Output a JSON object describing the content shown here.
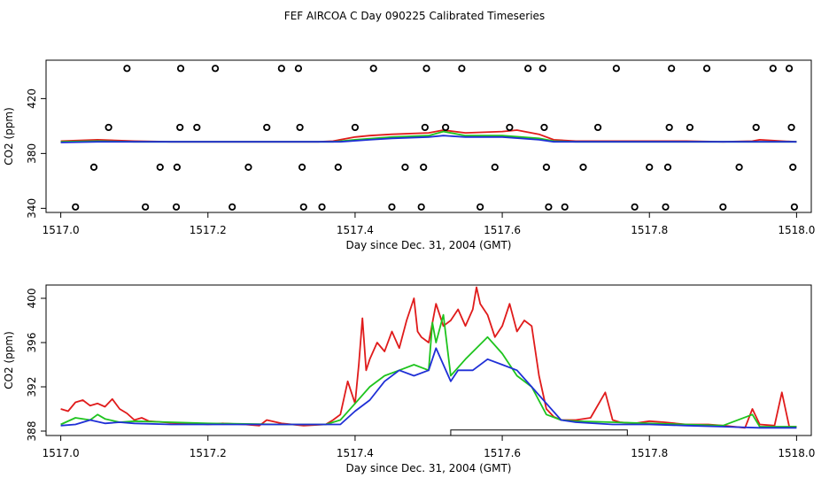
{
  "title": "FEF AIRCOA C  Day 090225  Calibrated Timeseries",
  "colors": {
    "red": "#e01b1b",
    "green": "#1ec41e",
    "blue": "#1f2fd6",
    "frame": "#000000"
  },
  "chart_data": [
    {
      "type": "line",
      "xlabel": "Day since Dec. 31, 2004 (GMT)",
      "ylabel": "CO2 (ppm)",
      "xlim": [
        1516.98,
        1518.02
      ],
      "ylim": [
        337,
        448
      ],
      "xticks": [
        "1517.0",
        "1517.2",
        "1517.4",
        "1517.6",
        "1517.8",
        "1518.0"
      ],
      "xtick_values": [
        1517.0,
        1517.2,
        1517.4,
        1517.6,
        1517.8,
        1518.0
      ],
      "yticks": [
        "340",
        "380",
        "420"
      ],
      "ytick_values": [
        340,
        380,
        420
      ],
      "series": [
        {
          "color": "red",
          "x": [
            1517.0,
            1517.05,
            1517.1,
            1517.15,
            1517.2,
            1517.25,
            1517.3,
            1517.35,
            1517.37,
            1517.4,
            1517.42,
            1517.45,
            1517.5,
            1517.52,
            1517.55,
            1517.6,
            1517.62,
            1517.65,
            1517.67,
            1517.7,
            1517.75,
            1517.8,
            1517.85,
            1517.9,
            1517.94,
            1517.95,
            1517.98,
            1518.0
          ],
          "y": [
            389,
            390,
            389,
            388.5,
            388.5,
            388.5,
            388.5,
            388.5,
            389,
            392,
            393,
            394,
            395,
            397,
            395,
            396,
            397,
            394,
            390,
            389,
            389,
            389,
            389,
            388.5,
            389,
            390,
            389,
            388.5
          ]
        },
        {
          "color": "green",
          "x": [
            1517.0,
            1517.05,
            1517.1,
            1517.2,
            1517.3,
            1517.37,
            1517.4,
            1517.45,
            1517.5,
            1517.52,
            1517.55,
            1517.6,
            1517.65,
            1517.67,
            1517.7,
            1517.8,
            1517.9,
            1518.0
          ],
          "y": [
            388.5,
            389,
            388.5,
            388.5,
            388.5,
            388.5,
            390,
            392,
            393,
            396,
            393,
            393,
            391,
            389,
            388.5,
            388.5,
            388.5,
            388.5
          ]
        },
        {
          "color": "blue",
          "x": [
            1517.0,
            1517.05,
            1517.1,
            1517.2,
            1517.3,
            1517.38,
            1517.42,
            1517.45,
            1517.5,
            1517.52,
            1517.55,
            1517.6,
            1517.65,
            1517.67,
            1517.7,
            1517.8,
            1517.9,
            1518.0
          ],
          "y": [
            388,
            388.5,
            388.5,
            388.5,
            388.5,
            388.5,
            390,
            391,
            392,
            393,
            392,
            392,
            390,
            388.5,
            388.5,
            388.5,
            388.5,
            388.5
          ]
        }
      ],
      "markers": {
        "shape": "circle",
        "x": [
          1517.02,
          1517.045,
          1517.065,
          1517.09,
          1517.115,
          1517.135,
          1517.157,
          1517.158,
          1517.162,
          1517.163,
          1517.185,
          1517.21,
          1517.233,
          1517.255,
          1517.28,
          1517.3,
          1517.323,
          1517.325,
          1517.328,
          1517.33,
          1517.355,
          1517.377,
          1517.4,
          1517.425,
          1517.45,
          1517.468,
          1517.49,
          1517.493,
          1517.495,
          1517.497,
          1517.523,
          1517.545,
          1517.57,
          1517.59,
          1517.61,
          1517.635,
          1517.655,
          1517.657,
          1517.66,
          1517.663,
          1517.685,
          1517.71,
          1517.73,
          1517.755,
          1517.78,
          1517.8,
          1517.822,
          1517.825,
          1517.827,
          1517.83,
          1517.855,
          1517.878,
          1517.9,
          1517.922,
          1517.945,
          1517.968,
          1517.99,
          1517.993,
          1517.995,
          1517.997
        ],
        "y": [
          341,
          370,
          399,
          442,
          341,
          370,
          341,
          370,
          399,
          442,
          399,
          442,
          341,
          370,
          399,
          442,
          442,
          399,
          370,
          341,
          341,
          370,
          399,
          442,
          341,
          370,
          341,
          370,
          399,
          442,
          399,
          442,
          341,
          370,
          399,
          442,
          442,
          399,
          370,
          341,
          341,
          370,
          399,
          442,
          341,
          370,
          341,
          370,
          399,
          442,
          399,
          442,
          341,
          370,
          399,
          442,
          442,
          399,
          370,
          341
        ]
      }
    },
    {
      "type": "line",
      "xlabel": "Day since Dec. 31, 2004 (GMT)",
      "ylabel": "CO2 (ppm)",
      "xlim": [
        1516.98,
        1518.02
      ],
      "ylim": [
        387.6,
        401.2
      ],
      "xticks": [
        "1517.0",
        "1517.2",
        "1517.4",
        "1517.6",
        "1517.8",
        "1518.0"
      ],
      "xtick_values": [
        1517.0,
        1517.2,
        1517.4,
        1517.6,
        1517.8,
        1518.0
      ],
      "yticks": [
        "388",
        "392",
        "396",
        "400"
      ],
      "ytick_values": [
        388,
        392,
        396,
        400
      ],
      "annotation_bar": {
        "x_start": 1517.53,
        "x_end": 1517.77,
        "y_bottom": 387.6,
        "y_top": 388.1
      },
      "series": [
        {
          "color": "red",
          "x": [
            1517.0,
            1517.01,
            1517.02,
            1517.03,
            1517.04,
            1517.05,
            1517.06,
            1517.07,
            1517.08,
            1517.09,
            1517.1,
            1517.11,
            1517.12,
            1517.14,
            1517.16,
            1517.18,
            1517.2,
            1517.22,
            1517.25,
            1517.27,
            1517.28,
            1517.3,
            1517.33,
            1517.36,
            1517.37,
            1517.38,
            1517.39,
            1517.4,
            1517.405,
            1517.41,
            1517.415,
            1517.42,
            1517.43,
            1517.44,
            1517.45,
            1517.46,
            1517.47,
            1517.48,
            1517.485,
            1517.49,
            1517.5,
            1517.51,
            1517.52,
            1517.53,
            1517.54,
            1517.55,
            1517.56,
            1517.565,
            1517.57,
            1517.58,
            1517.59,
            1517.6,
            1517.61,
            1517.62,
            1517.63,
            1517.64,
            1517.65,
            1517.66,
            1517.67,
            1517.68,
            1517.7,
            1517.72,
            1517.74,
            1517.75,
            1517.76,
            1517.78,
            1517.8,
            1517.82,
            1517.85,
            1517.88,
            1517.9,
            1517.93,
            1517.94,
            1517.95,
            1517.97,
            1517.98,
            1517.99,
            1518.0
          ],
          "y": [
            390.0,
            389.8,
            390.6,
            390.8,
            390.3,
            390.5,
            390.2,
            390.9,
            390.0,
            389.6,
            389.0,
            389.2,
            388.9,
            388.8,
            388.7,
            388.7,
            388.6,
            388.7,
            388.6,
            388.5,
            389.0,
            388.7,
            388.5,
            388.6,
            389.0,
            389.5,
            392.5,
            390.5,
            394.0,
            398.2,
            393.5,
            394.5,
            396.0,
            395.2,
            397.0,
            395.5,
            398.0,
            400.0,
            397.0,
            396.5,
            396.0,
            399.5,
            397.5,
            398.0,
            399.0,
            397.5,
            399.0,
            401.0,
            399.5,
            398.5,
            396.5,
            397.5,
            399.5,
            397.0,
            398.0,
            397.5,
            393.0,
            390.0,
            389.3,
            389.0,
            389.0,
            389.2,
            391.5,
            389.0,
            388.8,
            388.7,
            388.9,
            388.8,
            388.6,
            388.6,
            388.5,
            388.3,
            390.0,
            388.6,
            388.5,
            391.5,
            388.4,
            388.4
          ]
        },
        {
          "color": "green",
          "x": [
            1517.0,
            1517.02,
            1517.04,
            1517.05,
            1517.06,
            1517.08,
            1517.1,
            1517.15,
            1517.2,
            1517.3,
            1517.36,
            1517.38,
            1517.4,
            1517.42,
            1517.44,
            1517.46,
            1517.48,
            1517.5,
            1517.505,
            1517.51,
            1517.52,
            1517.53,
            1517.55,
            1517.58,
            1517.6,
            1517.62,
            1517.64,
            1517.66,
            1517.68,
            1517.7,
            1517.75,
            1517.8,
            1517.9,
            1517.94,
            1517.95,
            1518.0
          ],
          "y": [
            388.6,
            389.2,
            389.0,
            389.5,
            389.1,
            388.8,
            388.9,
            388.8,
            388.7,
            388.6,
            388.6,
            389.0,
            390.5,
            392.0,
            393.0,
            393.5,
            394.0,
            393.5,
            397.8,
            396.0,
            398.5,
            393.0,
            394.5,
            396.5,
            395.0,
            393.0,
            392.0,
            389.5,
            389.0,
            388.9,
            388.8,
            388.7,
            388.5,
            389.5,
            388.4,
            388.4
          ]
        },
        {
          "color": "blue",
          "x": [
            1517.0,
            1517.02,
            1517.04,
            1517.06,
            1517.08,
            1517.1,
            1517.15,
            1517.2,
            1517.3,
            1517.38,
            1517.4,
            1517.42,
            1517.44,
            1517.46,
            1517.48,
            1517.5,
            1517.51,
            1517.52,
            1517.53,
            1517.54,
            1517.56,
            1517.58,
            1517.6,
            1517.62,
            1517.64,
            1517.66,
            1517.68,
            1517.7,
            1517.75,
            1517.8,
            1517.85,
            1517.9,
            1517.95,
            1518.0
          ],
          "y": [
            388.5,
            388.6,
            389.0,
            388.7,
            388.8,
            388.7,
            388.6,
            388.6,
            388.6,
            388.6,
            389.8,
            390.8,
            392.5,
            393.5,
            393.0,
            393.5,
            395.5,
            394.0,
            392.5,
            393.5,
            393.5,
            394.5,
            394.0,
            393.5,
            392.0,
            390.5,
            389.0,
            388.8,
            388.6,
            388.6,
            388.5,
            388.4,
            388.3,
            388.3
          ]
        }
      ]
    }
  ]
}
